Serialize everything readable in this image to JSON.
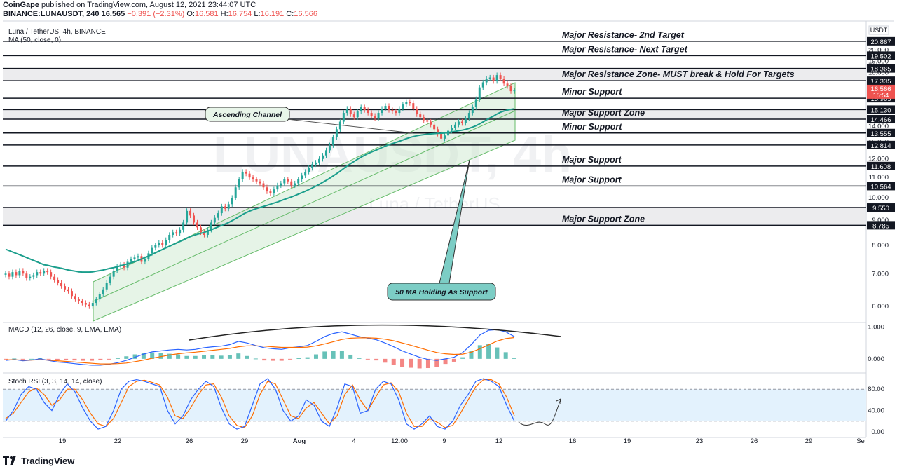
{
  "header": {
    "publisher": "CoinGape",
    "published_text": " published on TradingView.com, August 12, 2021 23:44:07 UTC",
    "symbol": "BINANCE:LUNAUSDT, 240",
    "last": "16.565",
    "change": "−0.391 (−2.31%)",
    "o_label": "O:",
    "o": "16.581",
    "h_label": "H:",
    "h": "16.754",
    "l_label": "L:",
    "l": "16.191",
    "c_label": "C:",
    "c": "16.566"
  },
  "footer": {
    "brand": "TradingView"
  },
  "colors": {
    "up": "#26a69a",
    "down": "#ef5350",
    "ma": "#1b9e8c",
    "channel_fill": "#c8e6c9",
    "channel_line": "#66bb6a",
    "macd_line": "#2962ff",
    "signal_line": "#ff6d00",
    "stoch_k": "#2962ff",
    "stoch_d": "#ff6d00",
    "stoch_band": "#e3f2fd",
    "callout_teal": "#7ccdc5"
  },
  "chart_data": [
    {
      "type": "candlestick",
      "title": "Luna / TetherUS, 4h, BINANCE",
      "indicator_label": "MA (50, close, 0)",
      "currency_label": "USDT",
      "y_scale": "log",
      "ylim": [
        5.6,
        22.5
      ],
      "y_ticks": [
        "6.000",
        "7.000",
        "8.000",
        "9.000",
        "10.000",
        "11.000",
        "12.000",
        "13.000",
        "14.000",
        "16.000",
        "17.000",
        "18.000",
        "19.000",
        "20.000"
      ],
      "x_ticks": [
        "19",
        "22",
        "26",
        "29",
        "Aug",
        "4",
        "12:00",
        "9",
        "12",
        "16",
        "19",
        "23",
        "26",
        "29",
        "Se"
      ],
      "levels": [
        {
          "price": "20.867",
          "label": "Major Resistance- 2nd Target"
        },
        {
          "price": "19.502",
          "label": "Major Resistance- Next Target"
        },
        {
          "price": "18.365",
          "label": ""
        },
        {
          "price": "17.335",
          "label": "Major Resistance Zone- MUST break & Hold For Targets"
        },
        {
          "price": "15.965",
          "label": "Minor Support"
        },
        {
          "price": "15.130",
          "label": ""
        },
        {
          "price": "14.466",
          "label": "Major Support Zone"
        },
        {
          "price": "13.555",
          "label": "Minor Support"
        },
        {
          "price": "12.814",
          "label": ""
        },
        {
          "price": "11.608",
          "label": "Major Support"
        },
        {
          "price": "10.564",
          "label": "Major Support"
        },
        {
          "price": "9.550",
          "label": ""
        },
        {
          "price": "8.785",
          "label": "Major Support Zone"
        }
      ],
      "zones": [
        [
          17.335,
          18.365
        ],
        [
          14.466,
          15.13
        ],
        [
          8.785,
          9.55
        ]
      ],
      "last_price": "16.566",
      "countdown": "15:54",
      "annotations": [
        "Ascending Channel",
        "50 MA Holding As Support"
      ],
      "closes": [
        7.0,
        6.9,
        7.05,
        6.95,
        7.1,
        7.0,
        6.85,
        6.9,
        6.95,
        7.05,
        7.0,
        7.1,
        7.05,
        6.9,
        6.8,
        6.7,
        6.6,
        6.5,
        6.45,
        6.3,
        6.2,
        6.15,
        6.1,
        6.05,
        6.0,
        6.1,
        6.2,
        6.35,
        6.5,
        6.7,
        6.9,
        7.1,
        7.25,
        7.3,
        7.2,
        7.4,
        7.5,
        7.55,
        7.6,
        7.4,
        7.5,
        7.7,
        7.9,
        8.0,
        8.1,
        8.0,
        8.2,
        8.4,
        8.5,
        8.45,
        8.6,
        8.9,
        9.4,
        9.2,
        8.9,
        8.7,
        8.5,
        8.4,
        8.6,
        8.9,
        9.1,
        9.3,
        9.6,
        9.5,
        9.7,
        10.0,
        10.5,
        10.9,
        11.3,
        11.2,
        11.0,
        10.9,
        10.8,
        10.7,
        10.5,
        10.3,
        10.2,
        10.4,
        10.6,
        10.7,
        10.9,
        10.8,
        10.6,
        10.7,
        10.9,
        11.1,
        11.3,
        11.5,
        11.7,
        11.8,
        12.0,
        12.2,
        12.5,
        12.8,
        13.3,
        13.8,
        14.3,
        14.9,
        15.2,
        14.8,
        14.6,
        15.0,
        15.3,
        15.1,
        14.9,
        14.7,
        14.5,
        14.9,
        15.2,
        15.4,
        15.1,
        15.0,
        14.9,
        15.2,
        15.5,
        15.7,
        15.6,
        15.2,
        14.8,
        14.6,
        14.4,
        14.3,
        14.1,
        13.8,
        13.5,
        13.2,
        13.4,
        13.7,
        13.9,
        14.1,
        14.3,
        14.2,
        14.5,
        14.9,
        15.3,
        15.9,
        16.8,
        17.2,
        17.5,
        17.6,
        17.3,
        17.8,
        17.5,
        17.1,
        16.9,
        16.5,
        16.566
      ],
      "ma50": [
        7.85,
        7.8,
        7.75,
        7.7,
        7.65,
        7.6,
        7.55,
        7.5,
        7.45,
        7.4,
        7.35,
        7.3,
        7.28,
        7.25,
        7.22,
        7.2,
        7.18,
        7.15,
        7.12,
        7.1,
        7.08,
        7.06,
        7.05,
        7.05,
        7.05,
        7.06,
        7.08,
        7.1,
        7.12,
        7.15,
        7.18,
        7.2,
        7.23,
        7.26,
        7.3,
        7.33,
        7.37,
        7.4,
        7.45,
        7.5,
        7.55,
        7.6,
        7.66,
        7.72,
        7.78,
        7.84,
        7.9,
        7.96,
        8.02,
        8.08,
        8.14,
        8.2,
        8.27,
        8.33,
        8.38,
        8.42,
        8.46,
        8.5,
        8.55,
        8.6,
        8.66,
        8.72,
        8.78,
        8.84,
        8.9,
        8.98,
        9.06,
        9.15,
        9.24,
        9.32,
        9.39,
        9.45,
        9.5,
        9.55,
        9.6,
        9.65,
        9.7,
        9.75,
        9.8,
        9.86,
        9.92,
        9.98,
        10.04,
        10.1,
        10.17,
        10.24,
        10.31,
        10.39,
        10.47,
        10.56,
        10.65,
        10.75,
        10.85,
        10.96,
        11.08,
        11.2,
        11.33,
        11.47,
        11.61,
        11.74,
        11.86,
        11.98,
        12.1,
        12.21,
        12.31,
        12.4,
        12.48,
        12.57,
        12.66,
        12.75,
        12.83,
        12.9,
        12.97,
        13.04,
        13.12,
        13.2,
        13.27,
        13.33,
        13.38,
        13.42,
        13.45,
        13.48,
        13.5,
        13.52,
        13.53,
        13.54,
        13.56,
        13.59,
        13.62,
        13.66,
        13.7,
        13.74,
        13.79,
        13.86,
        13.94,
        14.03,
        14.15,
        14.28,
        14.42,
        14.56,
        14.68,
        14.82,
        14.94,
        15.03,
        15.1,
        15.15,
        15.19
      ]
    },
    {
      "type": "line",
      "title": "MACD (12, 26, close, 9, EMA, EMA)",
      "ylim": [
        -0.4,
        1.1
      ],
      "y_ticks": [
        "1.000",
        "0.000"
      ],
      "series": [
        {
          "name": "MACD",
          "values": [
            -0.05,
            -0.02,
            -0.06,
            -0.04,
            0.0,
            -0.05,
            -0.1,
            -0.12,
            -0.15,
            -0.18,
            -0.2,
            -0.2,
            -0.17,
            -0.12,
            -0.05,
            0.05,
            0.15,
            0.22,
            0.25,
            0.28,
            0.3,
            0.28,
            0.3,
            0.35,
            0.38,
            0.4,
            0.45,
            0.55,
            0.5,
            0.42,
            0.35,
            0.32,
            0.3,
            0.35,
            0.38,
            0.42,
            0.55,
            0.7,
            0.8,
            0.85,
            0.78,
            0.7,
            0.65,
            0.6,
            0.5,
            0.38,
            0.25,
            0.15,
            0.05,
            -0.02,
            -0.05,
            0.0,
            0.05,
            0.2,
            0.45,
            0.75,
            0.9,
            0.92,
            0.85,
            0.7
          ]
        },
        {
          "name": "Signal",
          "values": [
            -0.03,
            -0.03,
            -0.04,
            -0.04,
            -0.03,
            -0.04,
            -0.06,
            -0.08,
            -0.1,
            -0.12,
            -0.14,
            -0.16,
            -0.16,
            -0.15,
            -0.13,
            -0.09,
            -0.04,
            0.02,
            0.07,
            0.12,
            0.16,
            0.19,
            0.21,
            0.24,
            0.27,
            0.3,
            0.33,
            0.38,
            0.41,
            0.41,
            0.4,
            0.38,
            0.36,
            0.36,
            0.36,
            0.37,
            0.41,
            0.47,
            0.54,
            0.61,
            0.65,
            0.66,
            0.66,
            0.65,
            0.62,
            0.57,
            0.5,
            0.43,
            0.35,
            0.27,
            0.2,
            0.16,
            0.14,
            0.15,
            0.21,
            0.32,
            0.44,
            0.56,
            0.64,
            0.67
          ]
        }
      ],
      "trend_arc": true
    },
    {
      "type": "line",
      "title": "Stoch RSI (3, 3, 14, 14, close)",
      "ylim": [
        -8,
        108
      ],
      "y_ticks": [
        "80.00",
        "40.00",
        "0.00"
      ],
      "band": [
        20,
        80
      ],
      "series": [
        {
          "name": "K",
          "values": [
            20,
            40,
            70,
            85,
            80,
            55,
            40,
            70,
            90,
            75,
            45,
            20,
            5,
            10,
            40,
            80,
            95,
            98,
            95,
            90,
            85,
            40,
            15,
            30,
            60,
            80,
            95,
            85,
            45,
            15,
            5,
            10,
            50,
            90,
            100,
            80,
            40,
            20,
            30,
            60,
            50,
            20,
            10,
            45,
            90,
            85,
            35,
            40,
            80,
            95,
            90,
            60,
            15,
            5,
            15,
            30,
            10,
            5,
            20,
            50,
            70,
            95,
            100,
            95,
            85,
            50,
            20
          ]
        },
        {
          "name": "D",
          "values": [
            25,
            35,
            55,
            75,
            82,
            70,
            50,
            60,
            80,
            80,
            60,
            35,
            15,
            10,
            25,
            55,
            85,
            95,
            97,
            93,
            88,
            65,
            30,
            25,
            45,
            70,
            88,
            90,
            65,
            30,
            12,
            8,
            30,
            70,
            95,
            90,
            60,
            30,
            25,
            45,
            55,
            35,
            15,
            30,
            70,
            88,
            60,
            40,
            65,
            88,
            92,
            75,
            35,
            10,
            10,
            25,
            18,
            8,
            12,
            35,
            60,
            85,
            98,
            98,
            90,
            65,
            30
          ]
        }
      ],
      "forecast_curve": true
    }
  ]
}
